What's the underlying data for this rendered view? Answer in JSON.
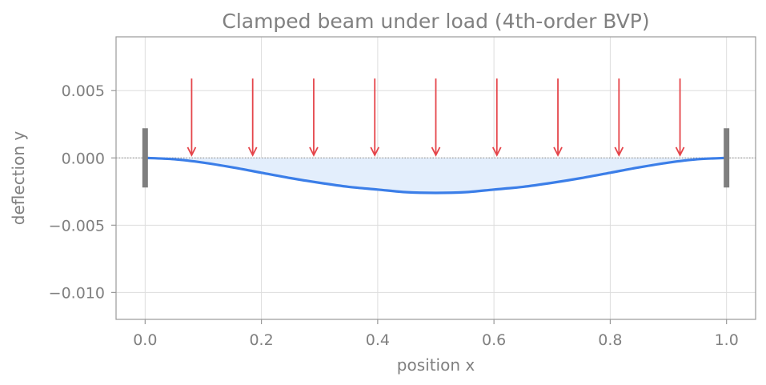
{
  "chart_data": {
    "type": "line",
    "title": "Clamped beam under load (4th-order BVP)",
    "xlabel": "position x",
    "ylabel": "deflection y",
    "xlim": [
      -0.05,
      1.05
    ],
    "ylim": [
      -0.012,
      0.009
    ],
    "x_ticks": [
      0.0,
      0.2,
      0.4,
      0.6,
      0.8,
      1.0
    ],
    "x_tick_labels": [
      "0.0",
      "0.2",
      "0.4",
      "0.6",
      "0.8",
      "1.0"
    ],
    "y_ticks": [
      0.005,
      0.0,
      -0.005,
      -0.01
    ],
    "y_tick_labels": [
      "0.005",
      "0.000",
      "−0.005",
      "−0.010"
    ],
    "grid": true,
    "series": [
      {
        "type": "line",
        "x": [
          0.0,
          0.05,
          0.1,
          0.15,
          0.2,
          0.25,
          0.3,
          0.35,
          0.4,
          0.45,
          0.5,
          0.55,
          0.6,
          0.65,
          0.7,
          0.75,
          0.8,
          0.85,
          0.9,
          0.95,
          1.0
        ],
        "y": [
          0.0,
          -0.0001,
          -0.00035,
          -0.0007,
          -0.0011,
          -0.0015,
          -0.00185,
          -0.00215,
          -0.00235,
          -0.00255,
          -0.0026,
          -0.00255,
          -0.00235,
          -0.00215,
          -0.00185,
          -0.0015,
          -0.0011,
          -0.0007,
          -0.00035,
          -0.0001,
          0.0
        ]
      }
    ],
    "load_arrows": {
      "x": [
        0.08,
        0.185,
        0.29,
        0.395,
        0.5,
        0.605,
        0.71,
        0.815,
        0.92
      ],
      "y_from": 0.0059,
      "y_to": 0.0002
    },
    "supports": {
      "x": [
        0.0,
        1.0
      ],
      "y_range": [
        -0.0022,
        0.0022
      ]
    },
    "reference_line_y": 0.0,
    "colors": {
      "curve": "#3b7ee8",
      "fill": "#e3eefc",
      "arrow": "#e5454a",
      "support": "#7f7f7f",
      "text": "#808080",
      "grid": "#dddddd",
      "axes": "#999999"
    }
  }
}
